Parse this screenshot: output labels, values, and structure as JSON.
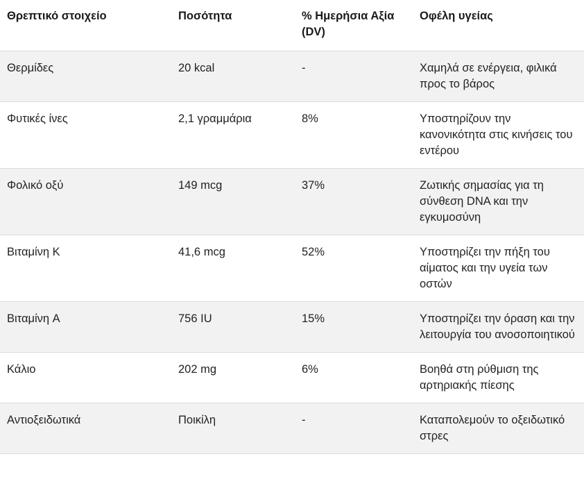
{
  "table": {
    "headers": [
      "Θρεπτικό στοιχείο",
      "Ποσότητα",
      "% Ημερήσια Αξία (DV)",
      "Οφέλη υγείας"
    ],
    "rows": [
      [
        "Θερμίδες",
        "20 kcal",
        "-",
        "Χαμηλά σε ενέργεια, φιλικά προς το βάρος"
      ],
      [
        "Φυτικές ίνες",
        "2,1 γραμμάρια",
        "8%",
        "Υποστηρίζουν την κανονικότητα στις κινήσεις του εντέρου"
      ],
      [
        "Φολικό οξύ",
        "149 mcg",
        "37%",
        "Ζωτικής σημασίας για τη σύνθεση DNA και την εγκυμοσύνη"
      ],
      [
        "Βιταμίνη K",
        "41,6 mcg",
        "52%",
        "Υποστηρίζει την πήξη του αίματος και την υγεία των οστών"
      ],
      [
        "Βιταμίνη A",
        "756 IU",
        "15%",
        "Υποστηρίζει την όραση και την λειτουργία του ανοσοποιητικού"
      ],
      [
        "Κάλιο",
        "202 mg",
        "6%",
        "Βοηθά στη ρύθμιση της αρτηριακής πίεσης"
      ],
      [
        "Αντιοξειδωτικά",
        "Ποικίλη",
        "-",
        "Καταπολεμούν το οξειδωτικό στρες"
      ]
    ]
  }
}
